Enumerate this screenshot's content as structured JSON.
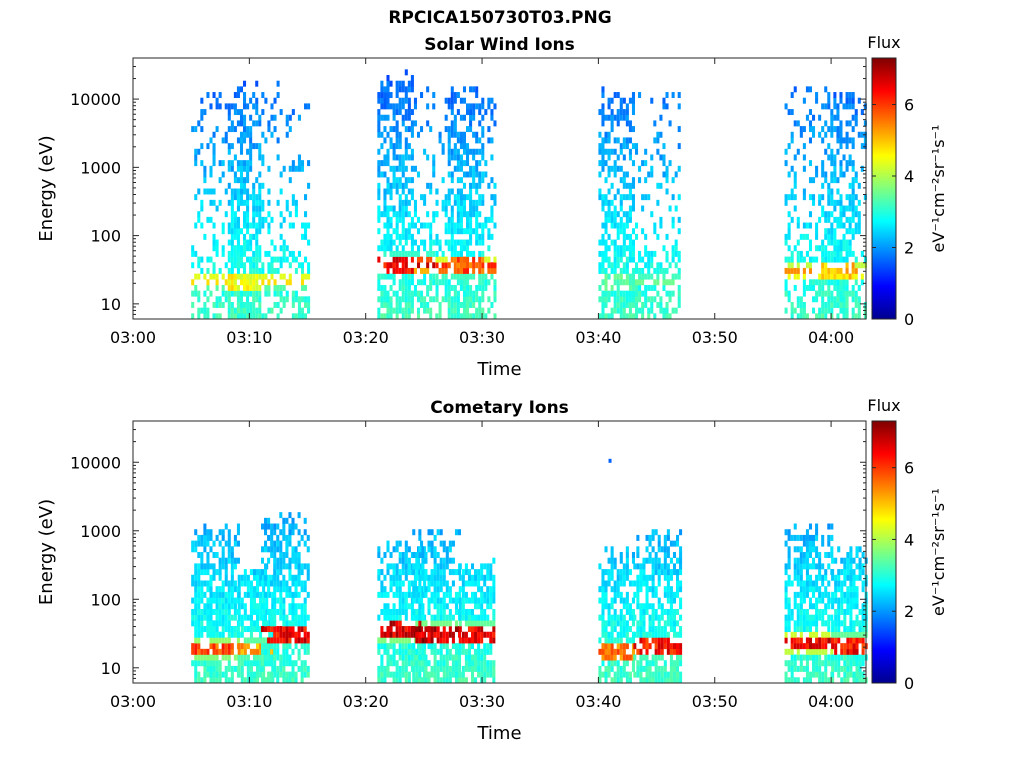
{
  "figure": {
    "title": "RPCICA150730T03.PNG"
  },
  "colors": {
    "colormap": [
      "#00008f",
      "#0000ff",
      "#007fff",
      "#00ffff",
      "#7fff7f",
      "#ffff00",
      "#ff7f00",
      "#ff0000",
      "#7f0000"
    ],
    "axis": "#262626",
    "background": "#ffffff"
  },
  "chart_data": [
    {
      "type": "heatmap",
      "title": "Solar Wind Ions",
      "xlabel": "Time",
      "ylabel": "Energy (eV)",
      "y_scale": "log",
      "ylim": [
        6,
        40000
      ],
      "xlim": [
        "03:00",
        "04:03"
      ],
      "x_tick_labels": [
        "03:00",
        "03:10",
        "03:20",
        "03:30",
        "03:40",
        "03:50",
        "04:00"
      ],
      "x_tick_minutes": [
        0,
        10,
        20,
        30,
        40,
        50,
        60
      ],
      "y_tick_labels": [
        "10",
        "100",
        "1000",
        "10000"
      ],
      "y_tick_values": [
        10,
        100,
        1000,
        10000
      ],
      "colorbar": {
        "label": "Flux",
        "units": "eV⁻¹cm⁻²sr⁻¹s⁻¹",
        "range": [
          0,
          7.3
        ],
        "tick_labels": [
          "0",
          "2",
          "4",
          "6"
        ],
        "tick_values": [
          0,
          2,
          4,
          6
        ]
      },
      "bursts": [
        {
          "start": "03:05",
          "end": "03:15",
          "core_start": "03:08",
          "core_end": "03:11",
          "e_high": 14000,
          "e_low": 6,
          "peak_energy": 22,
          "peak_flux": 4.9
        },
        {
          "start": "03:21",
          "end": "03:26",
          "core_start": "03:21",
          "core_end": "03:24",
          "e_high": 20000,
          "e_low": 6,
          "peak_energy": 38,
          "peak_flux": 6.9
        },
        {
          "start": "03:26",
          "end": "03:31",
          "core_start": "03:27",
          "core_end": "03:30",
          "e_high": 14000,
          "e_low": 6,
          "peak_energy": 35,
          "peak_flux": 6.3
        },
        {
          "start": "03:40",
          "end": "03:47",
          "core_start": "03:40",
          "core_end": "03:43",
          "e_high": 13000,
          "e_low": 6,
          "peak_energy": 22,
          "peak_flux": 3.6
        },
        {
          "start": "03:56",
          "end": "04:03",
          "core_start": "03:59",
          "core_end": "04:02",
          "e_high": 13000,
          "e_low": 6,
          "peak_energy": 30,
          "peak_flux": 5.4
        }
      ]
    },
    {
      "type": "heatmap",
      "title": "Cometary Ions",
      "xlabel": "Time",
      "ylabel": "Energy (eV)",
      "y_scale": "log",
      "ylim": [
        6,
        40000
      ],
      "xlim": [
        "03:00",
        "04:03"
      ],
      "x_tick_labels": [
        "03:00",
        "03:10",
        "03:20",
        "03:30",
        "03:40",
        "03:50",
        "04:00"
      ],
      "x_tick_minutes": [
        0,
        10,
        20,
        30,
        40,
        50,
        60
      ],
      "y_tick_labels": [
        "10",
        "100",
        "1000",
        "10000"
      ],
      "y_tick_values": [
        10,
        100,
        1000,
        10000
      ],
      "colorbar": {
        "label": "Flux",
        "units": "eV⁻¹cm⁻²sr⁻¹s⁻¹",
        "range": [
          0,
          7.3
        ],
        "tick_labels": [
          "0",
          "2",
          "4",
          "6"
        ],
        "tick_values": [
          0,
          2,
          4,
          6
        ]
      },
      "isolated_points": [
        {
          "time": "03:41",
          "energy": 10500,
          "flux": 1.6
        }
      ],
      "bursts": [
        {
          "start": "03:05",
          "end": "03:09",
          "e_high": 950,
          "e_low": 6,
          "peak_energy": 19,
          "peak_flux": 6.3
        },
        {
          "start": "03:09",
          "end": "03:12",
          "e_high": 250,
          "e_low": 6,
          "peak_energy": 19,
          "peak_flux": 5.6
        },
        {
          "start": "03:11",
          "end": "03:15",
          "e_high": 1500,
          "e_low": 6,
          "peak_energy": 30,
          "peak_flux": 7.0
        },
        {
          "start": "03:21",
          "end": "03:25",
          "e_high": 600,
          "e_low": 6,
          "peak_energy": 35,
          "peak_flux": 7.2
        },
        {
          "start": "03:24",
          "end": "03:28",
          "e_high": 900,
          "e_low": 6,
          "peak_energy": 32,
          "peak_flux": 7.3
        },
        {
          "start": "03:28",
          "end": "03:31",
          "e_high": 300,
          "e_low": 6,
          "peak_energy": 32,
          "peak_flux": 7.0
        },
        {
          "start": "03:40",
          "end": "03:43",
          "e_high": 500,
          "e_low": 6,
          "peak_energy": 18,
          "peak_flux": 6.0
        },
        {
          "start": "03:43",
          "end": "03:47",
          "e_high": 900,
          "e_low": 6,
          "peak_energy": 20,
          "peak_flux": 6.8
        },
        {
          "start": "03:56",
          "end": "04:00",
          "e_high": 1100,
          "e_low": 6,
          "peak_energy": 23,
          "peak_flux": 7.0
        },
        {
          "start": "04:00",
          "end": "04:03",
          "e_high": 500,
          "e_low": 6,
          "peak_energy": 22,
          "peak_flux": 6.8
        }
      ]
    }
  ]
}
